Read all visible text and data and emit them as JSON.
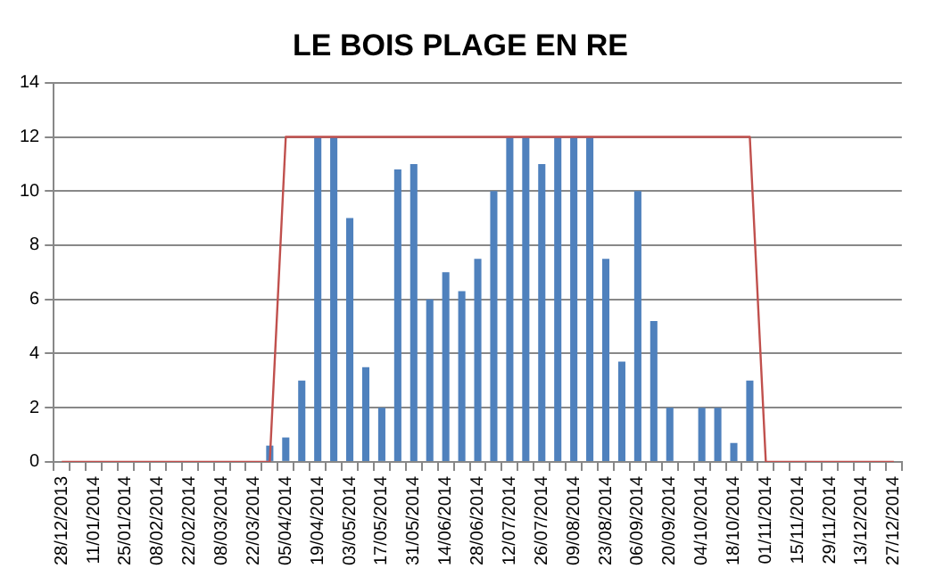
{
  "chart_data": {
    "type": "bar",
    "title": "LE BOIS PLAGE EN RE",
    "categories": [
      "28/12/2013",
      null,
      "11/01/2014",
      null,
      "25/01/2014",
      null,
      "08/02/2014",
      null,
      "22/02/2014",
      null,
      "08/03/2014",
      null,
      "22/03/2014",
      null,
      "05/04/2014",
      null,
      "19/04/2014",
      null,
      "03/05/2014",
      null,
      "17/05/2014",
      null,
      "31/05/2014",
      null,
      "14/06/2014",
      null,
      "28/06/2014",
      null,
      "12/07/2014",
      null,
      "26/07/2014",
      null,
      "09/08/2014",
      null,
      "23/08/2014",
      null,
      "06/09/2014",
      null,
      "20/09/2014",
      null,
      "04/10/2014",
      null,
      "18/10/2014",
      null,
      "01/11/2014",
      null,
      "15/11/2014",
      null,
      "29/11/2014",
      null,
      "13/12/2014",
      null,
      "27/12/2014"
    ],
    "series": [
      {
        "color": "#4f81bd",
        "values": [
          null,
          null,
          null,
          null,
          null,
          null,
          null,
          null,
          null,
          null,
          null,
          null,
          null,
          0.6,
          0.9,
          3,
          12,
          12,
          9,
          3.5,
          2,
          10.8,
          11,
          6,
          7,
          6.3,
          7.5,
          10,
          12,
          12,
          11,
          12,
          12,
          12,
          7.5,
          3.7,
          10,
          5.2,
          2,
          null,
          2,
          2,
          0.7,
          3,
          null,
          null,
          null,
          null,
          null,
          null,
          null,
          null,
          null
        ]
      },
      {
        "type": "line",
        "color": "#c0504d",
        "values": [
          0,
          0,
          0,
          0,
          0,
          0,
          0,
          0,
          0,
          0,
          0,
          0,
          0,
          0,
          12,
          12,
          12,
          12,
          12,
          12,
          12,
          12,
          12,
          12,
          12,
          12,
          12,
          12,
          12,
          12,
          12,
          12,
          12,
          12,
          12,
          12,
          12,
          12,
          12,
          12,
          12,
          12,
          12,
          12,
          0,
          0,
          0,
          0,
          0,
          0,
          0,
          0,
          0
        ]
      }
    ],
    "ylim": [
      0,
      14
    ],
    "yticks": [
      0,
      2,
      4,
      6,
      8,
      10,
      12,
      14
    ],
    "grid": "y",
    "legend": false
  }
}
